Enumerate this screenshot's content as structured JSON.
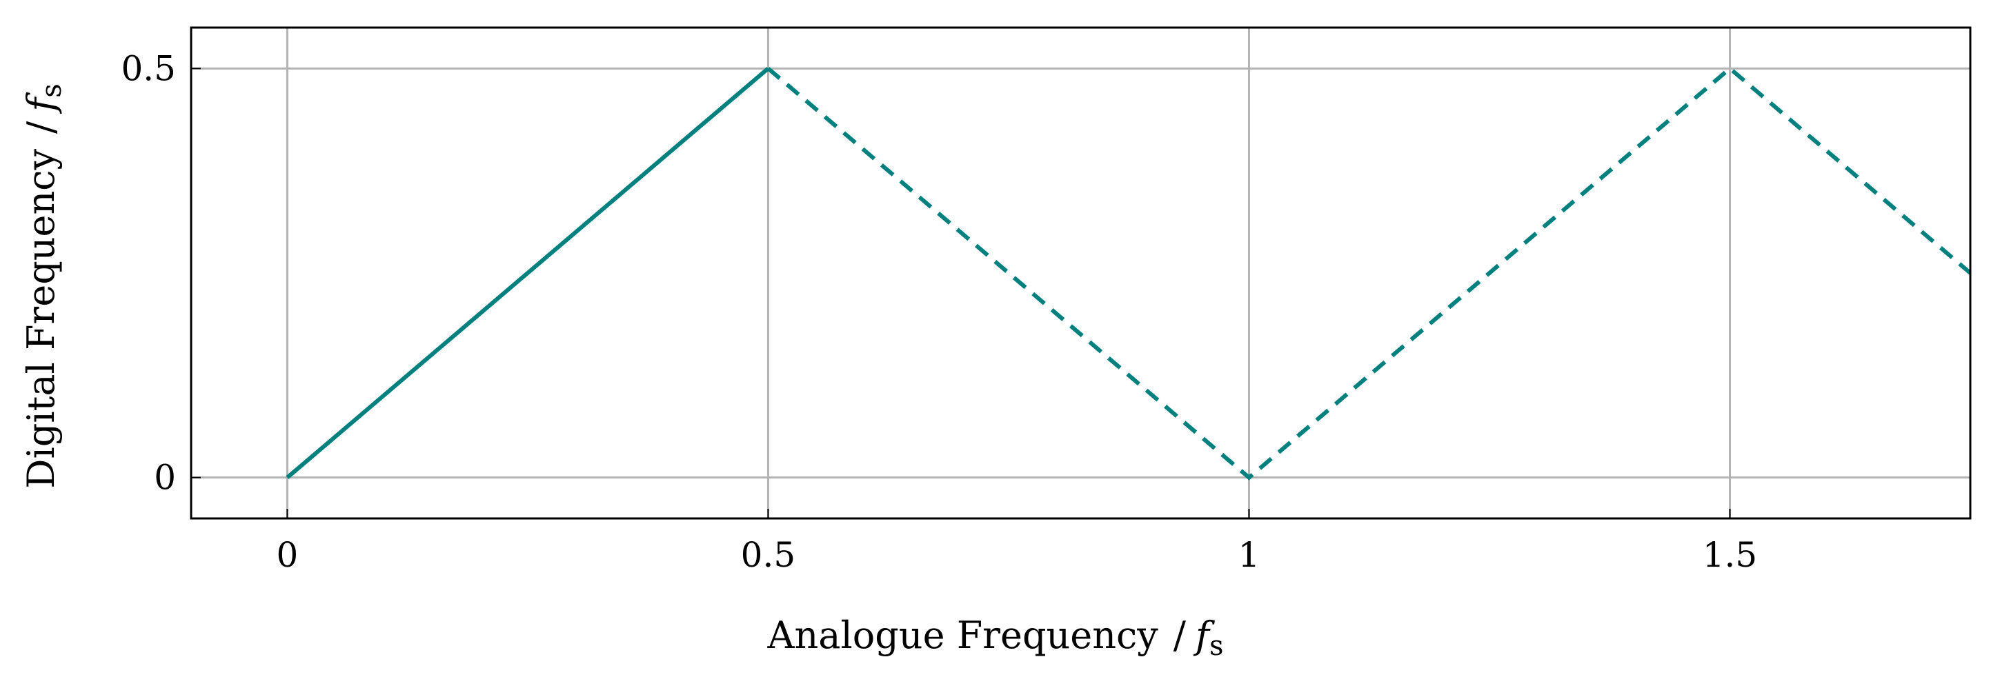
{
  "chart_data": {
    "type": "line",
    "xlabel": "Analogue Frequency",
    "ylabel": "Digital Frequency",
    "unit_symbol": "f",
    "unit_subscript": "s",
    "unit_separator": "/",
    "xlim": [
      -0.1,
      1.75
    ],
    "ylim": [
      -0.05,
      0.55
    ],
    "xticks": [
      0,
      0.5,
      1,
      1.5
    ],
    "xtick_labels": [
      "0",
      "0.5",
      "1",
      "1.5"
    ],
    "yticks": [
      0,
      0.5
    ],
    "ytick_labels": [
      "0",
      "0.5"
    ],
    "grid": true,
    "legend": "none",
    "series": [
      {
        "style": "solid",
        "color": "#00807F",
        "x": [
          0,
          0.5
        ],
        "y": [
          0,
          0.5
        ]
      },
      {
        "style": "dashed",
        "color": "#00807F",
        "x": [
          0.5,
          1,
          1.5,
          1.75
        ],
        "y": [
          0.5,
          0,
          0.5,
          0.25
        ]
      }
    ]
  },
  "colors": {
    "grid": "#B3B3B3",
    "frame": "#000000",
    "line": "#00807F"
  }
}
